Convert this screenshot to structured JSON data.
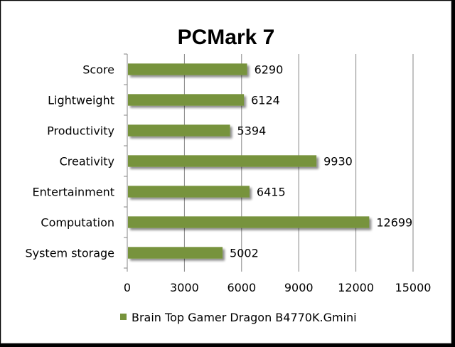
{
  "chart_data": {
    "type": "bar",
    "orientation": "horizontal",
    "title": "PCMark 7",
    "categories": [
      "Score",
      "Lightweight",
      "Productivity",
      "Creativity",
      "Entertainment",
      "Computation",
      "System storage"
    ],
    "series": [
      {
        "name": "Brain Top Gamer Dragon B4770K.Gmini",
        "color": "#77933c",
        "values": [
          6290,
          6124,
          5394,
          9930,
          6415,
          12699,
          5002
        ]
      }
    ],
    "x_ticks": [
      "0",
      "3000",
      "6000",
      "9000",
      "12000",
      "15000"
    ],
    "xlim": [
      0,
      15000
    ],
    "grid": true,
    "legend_position": "bottom",
    "data_labels": true
  }
}
